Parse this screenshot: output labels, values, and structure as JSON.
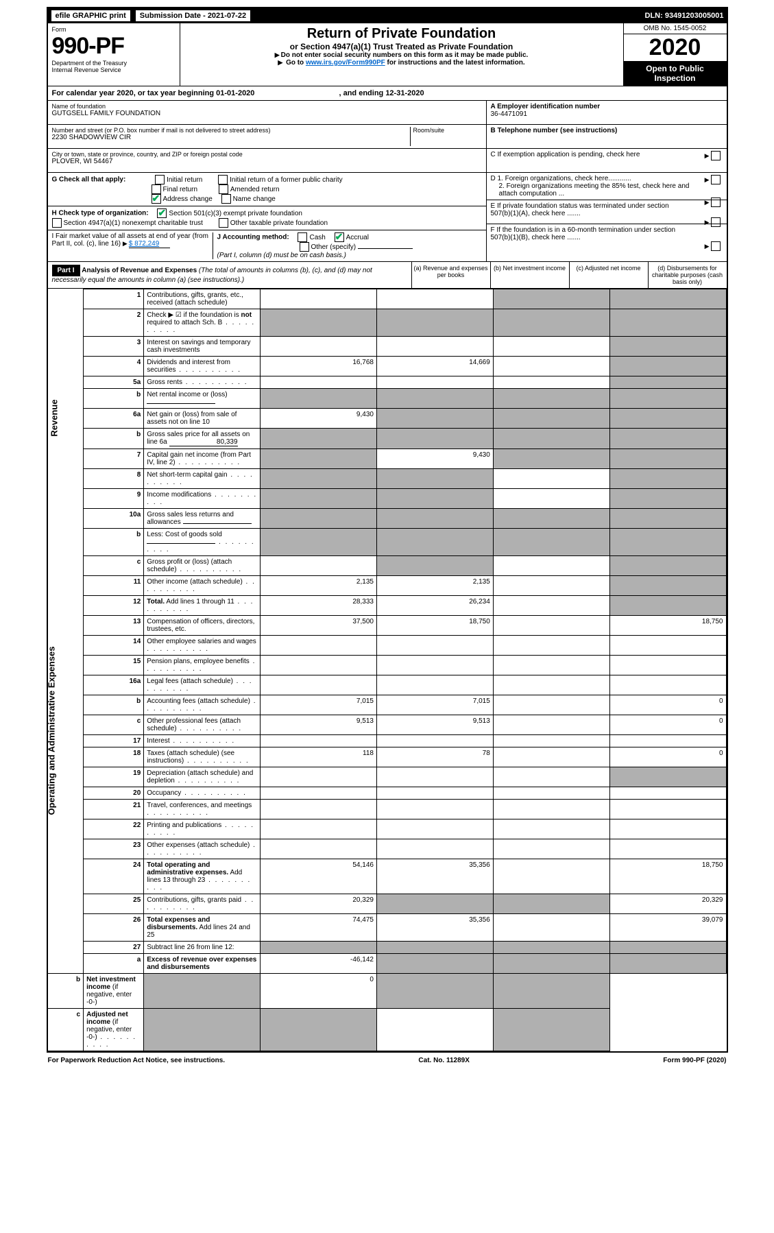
{
  "topbar": {
    "efile": "efile GRAPHIC print",
    "submission_label": "Submission Date - 2021-07-22",
    "dln": "DLN: 93491203005001"
  },
  "header": {
    "form_label": "Form",
    "form_number": "990-PF",
    "dept": "Department of the Treasury",
    "irs": "Internal Revenue Service",
    "title": "Return of Private Foundation",
    "subtitle": "or Section 4947(a)(1) Trust Treated as Private Foundation",
    "instr1": "Do not enter social security numbers on this form as it may be made public.",
    "instr2_pre": "Go to ",
    "instr2_link": "www.irs.gov/Form990PF",
    "instr2_post": " for instructions and the latest information.",
    "omb": "OMB No. 1545-0052",
    "year": "2020",
    "open": "Open to Public Inspection"
  },
  "calyear": {
    "text": "For calendar year 2020, or tax year beginning 01-01-2020",
    "ending": ", and ending 12-31-2020"
  },
  "info": {
    "name_label": "Name of foundation",
    "name": "GUTGSELL FAMILY FOUNDATION",
    "addr_label": "Number and street (or P.O. box number if mail is not delivered to street address)",
    "addr": "2230 SHADOWVIEW CIR",
    "room_label": "Room/suite",
    "city_label": "City or town, state or province, country, and ZIP or foreign postal code",
    "city": "PLOVER, WI  54467",
    "a_label": "A Employer identification number",
    "a_val": "36-4471091",
    "b_label": "B Telephone number (see instructions)",
    "c_label": "C If exemption application is pending, check here",
    "d1_label": "D 1. Foreign organizations, check here............",
    "d2_label": "2. Foreign organizations meeting the 85% test, check here and attach computation ...",
    "e_label": "E  If private foundation status was terminated under section 507(b)(1)(A), check here .......",
    "f_label": "F  If the foundation is in a 60-month termination under section 507(b)(1)(B), check here .......",
    "g_label": "G Check all that apply:",
    "g_opts": [
      "Initial return",
      "Initial return of a former public charity",
      "Final return",
      "Amended return",
      "Address change",
      "Name change"
    ],
    "h_label": "H Check type of organization:",
    "h_opts": [
      "Section 501(c)(3) exempt private foundation",
      "Section 4947(a)(1) nonexempt charitable trust",
      "Other taxable private foundation"
    ],
    "i_label": "I Fair market value of all assets at end of year (from Part II, col. (c), line 16)",
    "i_val": "$  872,249",
    "j_label": "J Accounting method:",
    "j_opts": [
      "Cash",
      "Accrual",
      "Other (specify)"
    ],
    "j_note": "(Part I, column (d) must be on cash basis.)"
  },
  "part1": {
    "label": "Part I",
    "title": "Analysis of Revenue and Expenses",
    "note": "(The total of amounts in columns (b), (c), and (d) may not necessarily equal the amounts in column (a) (see instructions).)",
    "cols": {
      "a": "(a) Revenue and expenses per books",
      "b": "(b) Net investment income",
      "c": "(c) Adjusted net income",
      "d": "(d) Disbursements for charitable purposes (cash basis only)"
    }
  },
  "sections": {
    "revenue": "Revenue",
    "expenses": "Operating and Administrative Expenses"
  },
  "lines": [
    {
      "n": "1",
      "d": "Contributions, gifts, grants, etc., received (attach schedule)",
      "a": "",
      "b": "",
      "c": "s",
      "dv": "s"
    },
    {
      "n": "2",
      "d": "Check ▶ ☑ if the foundation is <b>not</b> required to attach Sch. B",
      "dots": true,
      "a": "s",
      "b": "s",
      "c": "s",
      "dv": "s"
    },
    {
      "n": "3",
      "d": "Interest on savings and temporary cash investments",
      "a": "",
      "b": "",
      "c": "",
      "dv": "s"
    },
    {
      "n": "4",
      "d": "Dividends and interest from securities",
      "dots": true,
      "a": "16,768",
      "b": "14,669",
      "c": "",
      "dv": "s"
    },
    {
      "n": "5a",
      "d": "Gross rents",
      "dots": true,
      "a": "",
      "b": "",
      "c": "",
      "dv": "s"
    },
    {
      "n": "b",
      "d": "Net rental income or (loss)",
      "inline": true,
      "a": "s",
      "b": "s",
      "c": "s",
      "dv": "s"
    },
    {
      "n": "6a",
      "d": "Net gain or (loss) from sale of assets not on line 10",
      "a": "9,430",
      "b": "s",
      "c": "s",
      "dv": "s"
    },
    {
      "n": "b",
      "d": "Gross sales price for all assets on line 6a",
      "inline_val": "80,339",
      "a": "s",
      "b": "s",
      "c": "s",
      "dv": "s"
    },
    {
      "n": "7",
      "d": "Capital gain net income (from Part IV, line 2)",
      "dots": true,
      "a": "s",
      "b": "9,430",
      "c": "s",
      "dv": "s"
    },
    {
      "n": "8",
      "d": "Net short-term capital gain",
      "dots": true,
      "a": "s",
      "b": "s",
      "c": "",
      "dv": "s"
    },
    {
      "n": "9",
      "d": "Income modifications",
      "dots": true,
      "a": "s",
      "b": "s",
      "c": "",
      "dv": "s"
    },
    {
      "n": "10a",
      "d": "Gross sales less returns and allowances",
      "inline": true,
      "a": "s",
      "b": "s",
      "c": "s",
      "dv": "s"
    },
    {
      "n": "b",
      "d": "Less: Cost of goods sold",
      "dots": true,
      "inline": true,
      "a": "s",
      "b": "s",
      "c": "s",
      "dv": "s"
    },
    {
      "n": "c",
      "d": "Gross profit or (loss) (attach schedule)",
      "dots": true,
      "a": "",
      "b": "s",
      "c": "",
      "dv": "s"
    },
    {
      "n": "11",
      "d": "Other income (attach schedule)",
      "dots": true,
      "a": "2,135",
      "b": "2,135",
      "c": "",
      "dv": "s"
    },
    {
      "n": "12",
      "d": "<b>Total.</b> Add lines 1 through 11",
      "dots": true,
      "a": "28,333",
      "b": "26,234",
      "c": "",
      "dv": "s"
    },
    {
      "n": "13",
      "d": "Compensation of officers, directors, trustees, etc.",
      "a": "37,500",
      "b": "18,750",
      "c": "",
      "dv": "18,750"
    },
    {
      "n": "14",
      "d": "Other employee salaries and wages",
      "dots": true,
      "a": "",
      "b": "",
      "c": "",
      "dv": ""
    },
    {
      "n": "15",
      "d": "Pension plans, employee benefits",
      "dots": true,
      "a": "",
      "b": "",
      "c": "",
      "dv": ""
    },
    {
      "n": "16a",
      "d": "Legal fees (attach schedule)",
      "dots": true,
      "a": "",
      "b": "",
      "c": "",
      "dv": ""
    },
    {
      "n": "b",
      "d": "Accounting fees (attach schedule)",
      "dots": true,
      "a": "7,015",
      "b": "7,015",
      "c": "",
      "dv": "0"
    },
    {
      "n": "c",
      "d": "Other professional fees (attach schedule)",
      "dots": true,
      "a": "9,513",
      "b": "9,513",
      "c": "",
      "dv": "0"
    },
    {
      "n": "17",
      "d": "Interest",
      "dots": true,
      "a": "",
      "b": "",
      "c": "",
      "dv": ""
    },
    {
      "n": "18",
      "d": "Taxes (attach schedule) (see instructions)",
      "dots": true,
      "a": "118",
      "b": "78",
      "c": "",
      "dv": "0"
    },
    {
      "n": "19",
      "d": "Depreciation (attach schedule) and depletion",
      "dots": true,
      "a": "",
      "b": "",
      "c": "",
      "dv": "s"
    },
    {
      "n": "20",
      "d": "Occupancy",
      "dots": true,
      "a": "",
      "b": "",
      "c": "",
      "dv": ""
    },
    {
      "n": "21",
      "d": "Travel, conferences, and meetings",
      "dots": true,
      "a": "",
      "b": "",
      "c": "",
      "dv": ""
    },
    {
      "n": "22",
      "d": "Printing and publications",
      "dots": true,
      "a": "",
      "b": "",
      "c": "",
      "dv": ""
    },
    {
      "n": "23",
      "d": "Other expenses (attach schedule)",
      "dots": true,
      "a": "",
      "b": "",
      "c": "",
      "dv": ""
    },
    {
      "n": "24",
      "d": "<b>Total operating and administrative expenses.</b> Add lines 13 through 23",
      "dots": true,
      "a": "54,146",
      "b": "35,356",
      "c": "",
      "dv": "18,750"
    },
    {
      "n": "25",
      "d": "Contributions, gifts, grants paid",
      "dots": true,
      "a": "20,329",
      "b": "s",
      "c": "s",
      "dv": "20,329"
    },
    {
      "n": "26",
      "d": "<b>Total expenses and disbursements.</b> Add lines 24 and 25",
      "a": "74,475",
      "b": "35,356",
      "c": "",
      "dv": "39,079"
    },
    {
      "n": "27",
      "d": "Subtract line 26 from line 12:",
      "a": "s",
      "b": "s",
      "c": "s",
      "dv": "s"
    },
    {
      "n": "a",
      "d": "<b>Excess of revenue over expenses and disbursements</b>",
      "a": "-46,142",
      "b": "s",
      "c": "s",
      "dv": "s"
    },
    {
      "n": "b",
      "d": "<b>Net investment income</b> (if negative, enter -0-)",
      "a": "s",
      "b": "0",
      "c": "s",
      "dv": "s"
    },
    {
      "n": "c",
      "d": "<b>Adjusted net income</b> (if negative, enter -0-)",
      "dots": true,
      "a": "s",
      "b": "s",
      "c": "",
      "dv": "s"
    }
  ],
  "footer": {
    "left": "For Paperwork Reduction Act Notice, see instructions.",
    "center": "Cat. No. 11289X",
    "right": "Form 990-PF (2020)"
  }
}
